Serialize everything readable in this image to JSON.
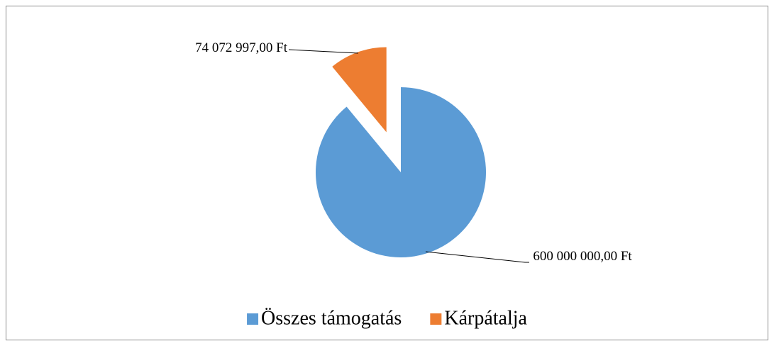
{
  "chart_data": {
    "type": "pie",
    "categories": [
      "Összes támogatás",
      "Kárpátalja"
    ],
    "values": [
      600000000,
      74072997
    ],
    "value_labels": [
      "600 000 000,00 Ft",
      "74 072 997,00 Ft"
    ],
    "colors": [
      "#5b9bd5",
      "#ed7d31"
    ],
    "exploded": [
      false,
      true
    ],
    "legend": "bottom"
  }
}
